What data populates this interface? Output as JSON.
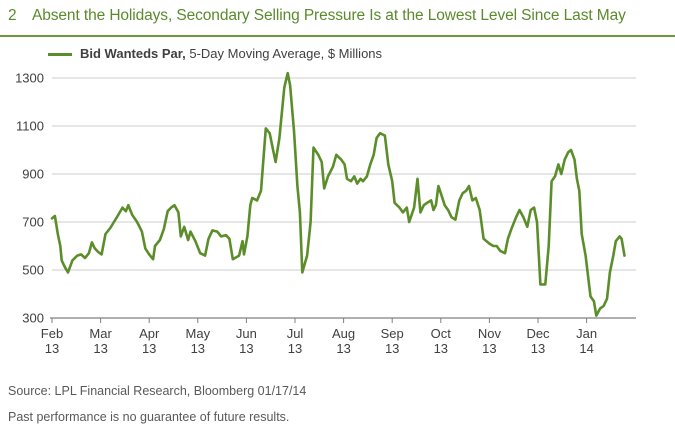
{
  "header": {
    "figure_number": "2",
    "title": "Absent the Holidays, Secondary Selling Pressure Is at the Lowest Level Since Last May"
  },
  "legend": {
    "series_name_bold": "Bid Wanteds Par,",
    "series_name_rest": "5-Day Moving Average, $ Millions"
  },
  "footer": {
    "source": "Source: LPL Financial Research, Bloomberg   01/17/14",
    "disclaimer": "Past performance is no guarantee of future results."
  },
  "colors": {
    "title": "#5a8a2c",
    "line": "#5b8e2a",
    "grid": "#cccccc",
    "axis": "#808080"
  },
  "chart_data": {
    "type": "line",
    "title": "Absent the Holidays, Secondary Selling Pressure Is at the Lowest Level Since Last May",
    "xlabel": "",
    "ylabel": "",
    "ylim": [
      300,
      1300
    ],
    "yticks": [
      300,
      500,
      700,
      900,
      1100,
      1300
    ],
    "grid": "horizontal",
    "legend_position": "top-left",
    "x_tick_labels": [
      {
        "month": "Feb",
        "year": "13"
      },
      {
        "month": "Mar",
        "year": "13"
      },
      {
        "month": "Apr",
        "year": "13"
      },
      {
        "month": "May",
        "year": "13"
      },
      {
        "month": "Jun",
        "year": "13"
      },
      {
        "month": "Jul",
        "year": "13"
      },
      {
        "month": "Aug",
        "year": "13"
      },
      {
        "month": "Sep",
        "year": "13"
      },
      {
        "month": "Oct",
        "year": "13"
      },
      {
        "month": "Nov",
        "year": "13"
      },
      {
        "month": "Dec",
        "year": "13"
      },
      {
        "month": "Jan",
        "year": "14"
      }
    ],
    "series": [
      {
        "name": "Bid Wanteds Par, 5-Day Moving Average, $ Millions",
        "x_start": "Feb 13",
        "x_end": "Jan 14",
        "points": [
          [
            0.0,
            715
          ],
          [
            0.06,
            725
          ],
          [
            0.12,
            650
          ],
          [
            0.17,
            600
          ],
          [
            0.2,
            540
          ],
          [
            0.27,
            510
          ],
          [
            0.33,
            490
          ],
          [
            0.42,
            540
          ],
          [
            0.52,
            560
          ],
          [
            0.6,
            565
          ],
          [
            0.68,
            550
          ],
          [
            0.76,
            570
          ],
          [
            0.82,
            615
          ],
          [
            0.88,
            590
          ],
          [
            0.95,
            575
          ],
          [
            1.02,
            565
          ],
          [
            1.1,
            650
          ],
          [
            1.2,
            675
          ],
          [
            1.35,
            725
          ],
          [
            1.45,
            760
          ],
          [
            1.52,
            745
          ],
          [
            1.57,
            770
          ],
          [
            1.65,
            730
          ],
          [
            1.75,
            700
          ],
          [
            1.85,
            660
          ],
          [
            1.92,
            590
          ],
          [
            2.0,
            565
          ],
          [
            2.08,
            545
          ],
          [
            2.12,
            600
          ],
          [
            2.22,
            625
          ],
          [
            2.3,
            670
          ],
          [
            2.38,
            745
          ],
          [
            2.45,
            760
          ],
          [
            2.52,
            770
          ],
          [
            2.6,
            740
          ],
          [
            2.65,
            640
          ],
          [
            2.72,
            680
          ],
          [
            2.8,
            625
          ],
          [
            2.85,
            660
          ],
          [
            2.95,
            620
          ],
          [
            3.05,
            570
          ],
          [
            3.15,
            560
          ],
          [
            3.22,
            630
          ],
          [
            3.3,
            665
          ],
          [
            3.4,
            660
          ],
          [
            3.48,
            640
          ],
          [
            3.58,
            645
          ],
          [
            3.65,
            630
          ],
          [
            3.72,
            545
          ],
          [
            3.85,
            560
          ],
          [
            3.92,
            620
          ],
          [
            3.95,
            565
          ],
          [
            4.02,
            640
          ],
          [
            4.08,
            770
          ],
          [
            4.12,
            800
          ],
          [
            4.22,
            790
          ],
          [
            4.3,
            830
          ],
          [
            4.4,
            1090
          ],
          [
            4.48,
            1070
          ],
          [
            4.55,
            1000
          ],
          [
            4.6,
            950
          ],
          [
            4.68,
            1050
          ],
          [
            4.78,
            1260
          ],
          [
            4.85,
            1320
          ],
          [
            4.9,
            1270
          ],
          [
            4.98,
            1080
          ],
          [
            5.05,
            850
          ],
          [
            5.1,
            740
          ],
          [
            5.15,
            490
          ],
          [
            5.25,
            560
          ],
          [
            5.32,
            700
          ],
          [
            5.38,
            1010
          ],
          [
            5.48,
            980
          ],
          [
            5.55,
            950
          ],
          [
            5.6,
            840
          ],
          [
            5.68,
            890
          ],
          [
            5.78,
            930
          ],
          [
            5.85,
            980
          ],
          [
            5.95,
            960
          ],
          [
            6.02,
            940
          ],
          [
            6.07,
            880
          ],
          [
            6.15,
            870
          ],
          [
            6.22,
            890
          ],
          [
            6.28,
            860
          ],
          [
            6.35,
            880
          ],
          [
            6.4,
            870
          ],
          [
            6.48,
            890
          ],
          [
            6.55,
            940
          ],
          [
            6.62,
            980
          ],
          [
            6.68,
            1050
          ],
          [
            6.75,
            1070
          ],
          [
            6.85,
            1060
          ],
          [
            6.92,
            940
          ],
          [
            7.0,
            870
          ],
          [
            7.05,
            780
          ],
          [
            7.15,
            760
          ],
          [
            7.22,
            740
          ],
          [
            7.3,
            760
          ],
          [
            7.35,
            700
          ],
          [
            7.45,
            760
          ],
          [
            7.52,
            880
          ],
          [
            7.58,
            740
          ],
          [
            7.65,
            770
          ],
          [
            7.72,
            780
          ],
          [
            7.8,
            790
          ],
          [
            7.85,
            750
          ],
          [
            7.9,
            770
          ],
          [
            7.95,
            850
          ],
          [
            8.0,
            820
          ],
          [
            8.08,
            770
          ],
          [
            8.15,
            750
          ],
          [
            8.22,
            720
          ],
          [
            8.3,
            710
          ],
          [
            8.38,
            790
          ],
          [
            8.45,
            820
          ],
          [
            8.52,
            830
          ],
          [
            8.58,
            850
          ],
          [
            8.65,
            790
          ],
          [
            8.72,
            800
          ],
          [
            8.8,
            750
          ],
          [
            8.88,
            630
          ],
          [
            9.0,
            610
          ],
          [
            9.08,
            600
          ],
          [
            9.15,
            600
          ],
          [
            9.22,
            580
          ],
          [
            9.32,
            570
          ],
          [
            9.38,
            630
          ],
          [
            9.45,
            670
          ],
          [
            9.55,
            720
          ],
          [
            9.62,
            750
          ],
          [
            9.7,
            720
          ],
          [
            9.78,
            680
          ],
          [
            9.85,
            750
          ],
          [
            9.92,
            760
          ],
          [
            9.98,
            700
          ],
          [
            10.05,
            440
          ],
          [
            10.15,
            440
          ],
          [
            10.22,
            600
          ],
          [
            10.28,
            870
          ],
          [
            10.35,
            890
          ],
          [
            10.42,
            940
          ],
          [
            10.48,
            900
          ],
          [
            10.55,
            960
          ],
          [
            10.62,
            990
          ],
          [
            10.68,
            1000
          ],
          [
            10.75,
            960
          ],
          [
            10.8,
            880
          ],
          [
            10.85,
            830
          ],
          [
            10.9,
            650
          ],
          [
            10.98,
            560
          ],
          [
            11.08,
            390
          ],
          [
            11.15,
            370
          ],
          [
            11.2,
            310
          ],
          [
            11.28,
            340
          ],
          [
            11.35,
            350
          ],
          [
            11.42,
            380
          ],
          [
            11.48,
            490
          ],
          [
            11.55,
            560
          ],
          [
            11.6,
            620
          ],
          [
            11.68,
            640
          ],
          [
            11.72,
            630
          ],
          [
            11.78,
            560
          ]
        ]
      }
    ]
  }
}
